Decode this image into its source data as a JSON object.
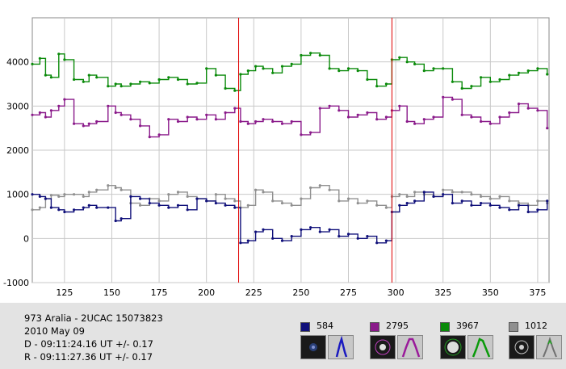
{
  "chart_data": {
    "type": "line",
    "title": "",
    "xlabel": "",
    "ylabel": "",
    "xlim": [
      108,
      381
    ],
    "ylim": [
      -1000,
      5000
    ],
    "x_ticks": [
      "125",
      "150",
      "175",
      "200",
      "225",
      "250",
      "275",
      "300",
      "325",
      "350",
      "375"
    ],
    "y_ticks": [
      "4000",
      "3000",
      "2000",
      "1000",
      "0",
      "-1000"
    ],
    "grid": true,
    "markers_x": [
      217,
      298
    ],
    "series": [
      {
        "name": "3967",
        "color": "#0a8a0a",
        "x": [
          108,
          112,
          115,
          118,
          122,
          125,
          130,
          135,
          138,
          142,
          148,
          152,
          155,
          160,
          165,
          170,
          175,
          180,
          185,
          190,
          195,
          200,
          205,
          210,
          215,
          218,
          222,
          226,
          230,
          235,
          240,
          245,
          250,
          255,
          260,
          265,
          270,
          275,
          280,
          285,
          290,
          295,
          298,
          302,
          306,
          310,
          315,
          320,
          325,
          330,
          335,
          340,
          345,
          350,
          355,
          360,
          365,
          370,
          375,
          380
        ],
        "values": [
          3950,
          4080,
          3700,
          3650,
          4180,
          4050,
          3600,
          3550,
          3700,
          3650,
          3450,
          3500,
          3450,
          3500,
          3550,
          3520,
          3600,
          3650,
          3600,
          3500,
          3520,
          3850,
          3700,
          3400,
          3350,
          3720,
          3800,
          3900,
          3850,
          3750,
          3900,
          3950,
          4150,
          4200,
          4150,
          3850,
          3800,
          3850,
          3800,
          3600,
          3450,
          3500,
          4050,
          4100,
          4000,
          3950,
          3800,
          3850,
          3850,
          3550,
          3400,
          3450,
          3650,
          3550,
          3600,
          3700,
          3750,
          3800,
          3850,
          3720
        ]
      },
      {
        "name": "2795",
        "color": "#8a1a8a",
        "x": [
          108,
          112,
          115,
          118,
          122,
          125,
          130,
          135,
          138,
          142,
          148,
          152,
          155,
          160,
          165,
          170,
          175,
          180,
          185,
          190,
          195,
          200,
          205,
          210,
          215,
          218,
          222,
          226,
          230,
          235,
          240,
          245,
          250,
          255,
          260,
          265,
          270,
          275,
          280,
          285,
          290,
          295,
          298,
          302,
          306,
          310,
          315,
          320,
          325,
          330,
          335,
          340,
          345,
          350,
          355,
          360,
          365,
          370,
          375,
          380
        ],
        "values": [
          2800,
          2850,
          2750,
          2900,
          3000,
          3150,
          2600,
          2550,
          2600,
          2650,
          3000,
          2850,
          2800,
          2700,
          2550,
          2300,
          2350,
          2700,
          2650,
          2750,
          2700,
          2800,
          2700,
          2850,
          2950,
          2650,
          2600,
          2650,
          2700,
          2650,
          2600,
          2650,
          2350,
          2400,
          2950,
          3000,
          2900,
          2750,
          2800,
          2850,
          2700,
          2750,
          2900,
          3000,
          2650,
          2600,
          2700,
          2750,
          3200,
          3150,
          2800,
          2750,
          2650,
          2600,
          2750,
          2850,
          3050,
          2950,
          2900,
          2500
        ]
      },
      {
        "name": "1012",
        "color": "#909090",
        "x": [
          108,
          112,
          115,
          118,
          122,
          125,
          130,
          135,
          138,
          142,
          148,
          152,
          155,
          160,
          165,
          170,
          175,
          180,
          185,
          190,
          195,
          200,
          205,
          210,
          215,
          218,
          222,
          226,
          230,
          235,
          240,
          245,
          250,
          255,
          260,
          265,
          270,
          275,
          280,
          285,
          290,
          295,
          298,
          302,
          306,
          310,
          315,
          320,
          325,
          330,
          335,
          340,
          345,
          350,
          355,
          360,
          365,
          370,
          375,
          380
        ],
        "values": [
          650,
          700,
          900,
          980,
          950,
          1000,
          1000,
          950,
          1050,
          1100,
          1200,
          1150,
          1100,
          800,
          750,
          900,
          850,
          1000,
          1050,
          950,
          900,
          850,
          1000,
          900,
          850,
          700,
          750,
          1100,
          1050,
          850,
          800,
          750,
          900,
          1150,
          1200,
          1100,
          850,
          900,
          800,
          850,
          750,
          700,
          950,
          1000,
          950,
          1050,
          1000,
          950,
          1100,
          1050,
          1050,
          1000,
          950,
          900,
          950,
          850,
          800,
          750,
          850,
          800
        ]
      },
      {
        "name": "584",
        "color": "#10107a",
        "x": [
          108,
          112,
          115,
          118,
          122,
          125,
          130,
          135,
          138,
          142,
          148,
          152,
          155,
          160,
          165,
          170,
          175,
          180,
          185,
          190,
          195,
          200,
          205,
          210,
          215,
          218,
          222,
          226,
          230,
          235,
          240,
          245,
          250,
          255,
          260,
          265,
          270,
          275,
          280,
          285,
          290,
          295,
          298,
          302,
          306,
          310,
          315,
          320,
          325,
          330,
          335,
          340,
          345,
          350,
          355,
          360,
          365,
          370,
          375,
          380
        ],
        "values": [
          1000,
          950,
          900,
          700,
          650,
          600,
          650,
          700,
          750,
          700,
          700,
          400,
          450,
          950,
          900,
          800,
          750,
          700,
          750,
          650,
          900,
          850,
          800,
          750,
          700,
          -100,
          -50,
          150,
          200,
          0,
          -50,
          50,
          200,
          250,
          150,
          200,
          50,
          100,
          0,
          50,
          -100,
          -50,
          600,
          750,
          800,
          850,
          1050,
          950,
          1000,
          800,
          850,
          750,
          800,
          750,
          700,
          650,
          750,
          600,
          650,
          850
        ]
      }
    ],
    "legend": [
      {
        "label": "584",
        "color": "#10107a"
      },
      {
        "label": "2795",
        "color": "#8a1a8a"
      },
      {
        "label": "3967",
        "color": "#0a8a0a"
      },
      {
        "label": "1012",
        "color": "#909090"
      }
    ]
  },
  "info": {
    "object": "973 Aralia - 2UCAC 15073823",
    "date": "2010 May 09",
    "disappearance": "D - 09:11:24.16 UT +/- 0.17",
    "reappearance": "R - 09:11:27.36 UT +/- 0.17"
  }
}
